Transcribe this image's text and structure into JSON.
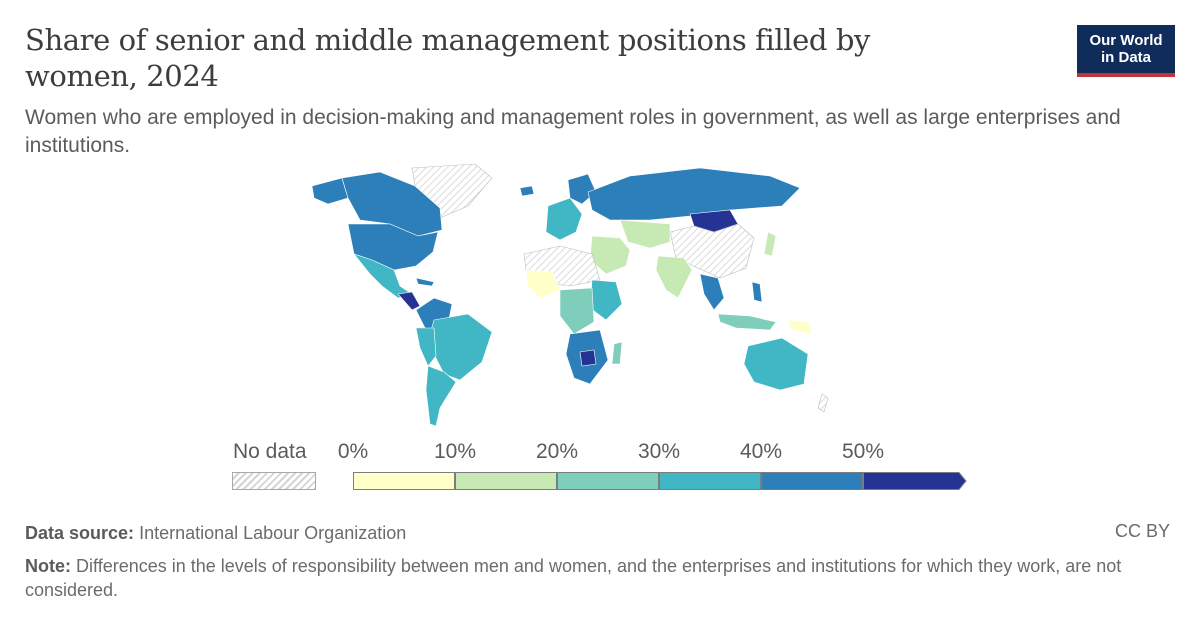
{
  "header": {
    "title": "Share of senior and middle management positions filled by women, 2024",
    "subtitle": "Women who are employed in decision-making and management roles in government, as well as large enterprises and institutions."
  },
  "logo": {
    "line1": "Our World",
    "line2": "in Data",
    "bg_color": "#0f2c5b",
    "accent_color": "#c0343b"
  },
  "legend": {
    "nodata_label": "No data",
    "ticks": [
      "0%",
      "10%",
      "20%",
      "30%",
      "40%",
      "50%"
    ],
    "bins": [
      {
        "range": "0-10%",
        "color": "#ffffc8"
      },
      {
        "range": "10-20%",
        "color": "#c7e9b4"
      },
      {
        "range": "20-30%",
        "color": "#7fcdbb"
      },
      {
        "range": "30-40%",
        "color": "#41b6c4"
      },
      {
        "range": "40-50%",
        "color": "#2c7fb8"
      },
      {
        "range": ">50%",
        "color": "#253494"
      }
    ]
  },
  "map": {
    "projection": "world",
    "nodata_pattern": "hatched-gray"
  },
  "footer": {
    "source_label": "Data source:",
    "source_text": "International Labour Organization",
    "note_label": "Note:",
    "note_text": "Differences in the levels of responsibility between men and women, and the enterprises and institutions for which they work, are not considered.",
    "license": "CC BY"
  }
}
